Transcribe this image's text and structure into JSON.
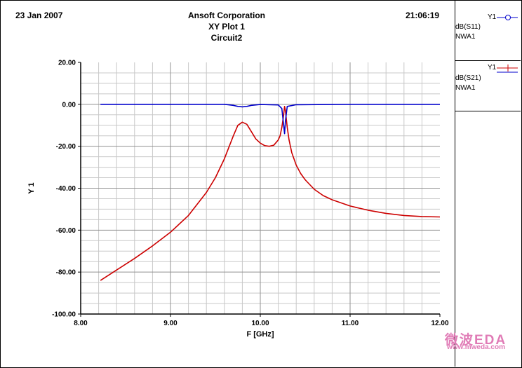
{
  "header": {
    "date": "23 Jan 2007",
    "company": "Ansoft Corporation",
    "plot_title": "XY Plot 1",
    "circuit": "Circuit2",
    "time": "21:06:19"
  },
  "legend": [
    {
      "axis": "Y1",
      "trace": "dB(S11)",
      "source": "NWA1",
      "color": "#0000cc",
      "marker": "circle"
    },
    {
      "axis": "Y1",
      "trace": "dB(S21)",
      "source": "NWA1",
      "color": "#cc0000",
      "marker": "plus"
    }
  ],
  "watermark": {
    "top": "微波EDA",
    "bottom": "www.mweda.com"
  },
  "chart_data": {
    "type": "line",
    "xlabel": "F [GHz]",
    "ylabel": "Y 1",
    "xlim": [
      8.0,
      12.0
    ],
    "ylim": [
      -100,
      20
    ],
    "x_ticks": [
      "8.00",
      "9.00",
      "10.00",
      "11.00",
      "12.00"
    ],
    "y_ticks": [
      "20.00",
      "0.00",
      "-20.00",
      "-40.00",
      "-60.00",
      "-80.00",
      "-100.00"
    ],
    "grid": true,
    "series": [
      {
        "name": "dB(S11)",
        "color": "#0000cc",
        "x": [
          8.22,
          9.0,
          9.6,
          9.7,
          9.75,
          9.8,
          9.85,
          9.9,
          10.0,
          10.2,
          10.24,
          10.26,
          10.27,
          10.28,
          10.3,
          10.4,
          11.0,
          12.0
        ],
        "y": [
          0.0,
          0.0,
          0.0,
          -0.5,
          -1.0,
          -1.2,
          -1.0,
          -0.5,
          -0.1,
          -0.3,
          -2.0,
          -10.0,
          -14.0,
          -8.0,
          -1.0,
          -0.2,
          0.0,
          0.0
        ]
      },
      {
        "name": "dB(S21)",
        "color": "#cc0000",
        "x": [
          8.22,
          8.4,
          8.6,
          8.8,
          9.0,
          9.2,
          9.4,
          9.5,
          9.6,
          9.7,
          9.75,
          9.8,
          9.85,
          9.9,
          9.95,
          10.0,
          10.05,
          10.1,
          10.15,
          10.2,
          10.22,
          10.24,
          10.26,
          10.27,
          10.28,
          10.3,
          10.32,
          10.35,
          10.4,
          10.45,
          10.5,
          10.6,
          10.7,
          10.8,
          11.0,
          11.2,
          11.4,
          11.6,
          11.8,
          12.0
        ],
        "y": [
          -84.0,
          -79.0,
          -73.5,
          -67.5,
          -61.0,
          -53.0,
          -42.0,
          -35.0,
          -26.0,
          -15.0,
          -10.0,
          -8.5,
          -9.5,
          -13.0,
          -16.5,
          -18.5,
          -19.7,
          -20.0,
          -19.5,
          -17.0,
          -15.0,
          -11.0,
          -5.0,
          -1.0,
          -3.0,
          -11.0,
          -17.0,
          -23.0,
          -29.0,
          -33.0,
          -36.0,
          -40.5,
          -43.5,
          -45.5,
          -48.5,
          -50.5,
          -52.0,
          -53.0,
          -53.5,
          -53.7
        ]
      }
    ]
  }
}
